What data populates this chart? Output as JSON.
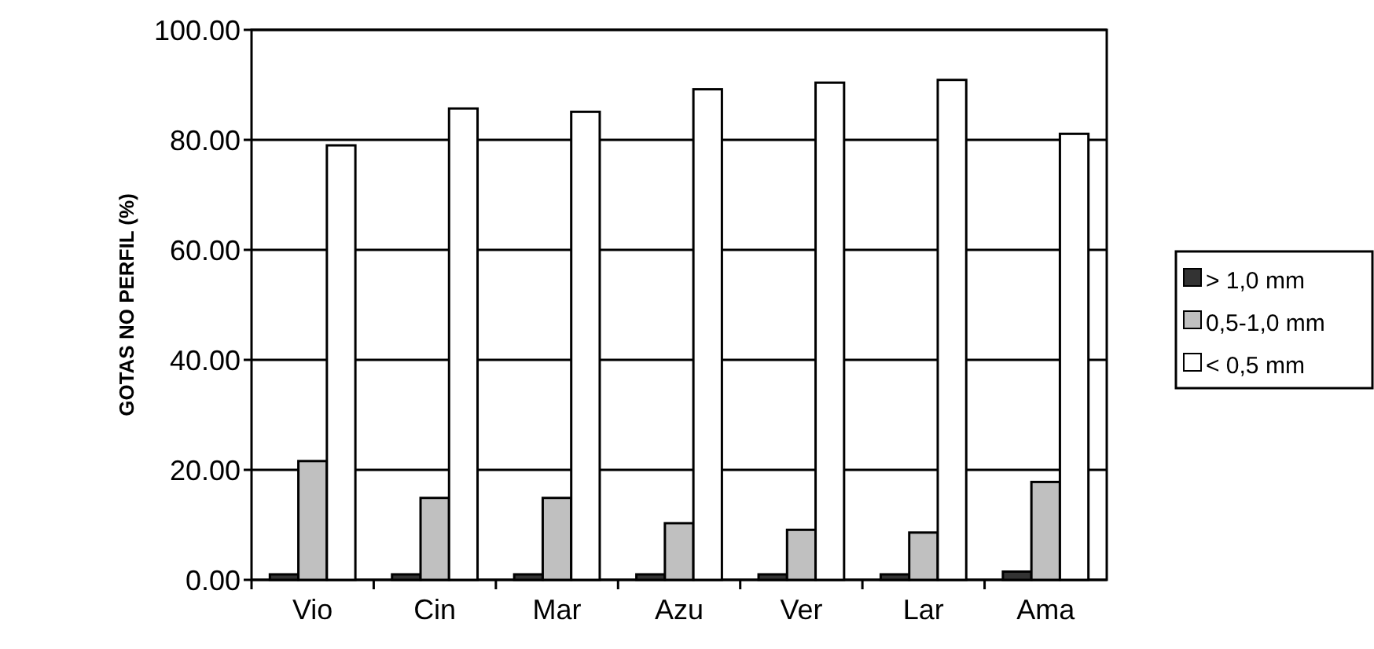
{
  "chart_data": {
    "type": "bar",
    "ylabel": "GOTAS NO PERFIL (%)",
    "categories": [
      "Vio",
      "Cin",
      "Mar",
      "Azu",
      "Ver",
      "Lar",
      "Ama"
    ],
    "series": [
      {
        "name": "> 1,0 mm",
        "color": "#333333",
        "values": [
          1.0,
          1.0,
          1.0,
          1.0,
          1.0,
          1.0,
          1.5
        ]
      },
      {
        "name": "0,5-1,0 mm",
        "color": "#c0c0c0",
        "values": [
          21.6,
          14.9,
          14.9,
          10.3,
          9.1,
          8.6,
          17.8
        ]
      },
      {
        "name": "< 0,5 mm",
        "color": "#ffffff",
        "values": [
          79.0,
          85.7,
          85.1,
          89.2,
          90.4,
          90.9,
          81.1
        ]
      }
    ],
    "ylim": [
      0,
      100
    ],
    "yticks": [
      {
        "value": 0,
        "label": "0.00"
      },
      {
        "value": 20,
        "label": "20.00"
      },
      {
        "value": 40,
        "label": "40.00"
      },
      {
        "value": 60,
        "label": "60.00"
      },
      {
        "value": 80,
        "label": "80.00"
      },
      {
        "value": 100,
        "label": "100.00"
      }
    ],
    "grid": "y",
    "legend": "right"
  }
}
